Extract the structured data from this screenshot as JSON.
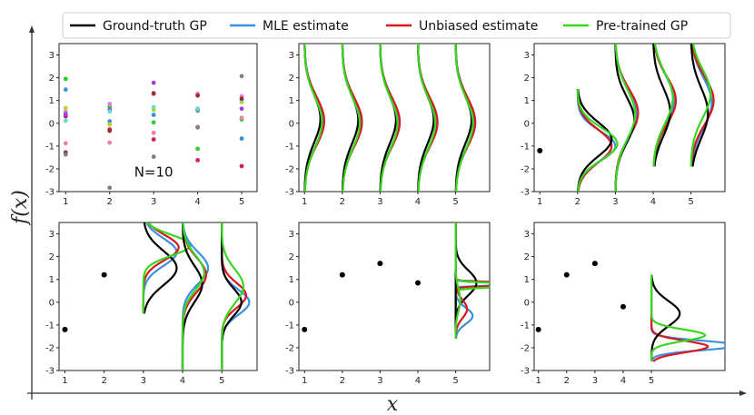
{
  "chart_data": {
    "type": "line",
    "title": "",
    "xlabel": "x",
    "ylabel": "f(x)",
    "colors": {
      "ground_truth": "#000000",
      "mle": "#3a8fe0",
      "unbiased": "#d6191f",
      "pretrained": "#39d620"
    },
    "legend": [
      {
        "key": "ground_truth",
        "label": "Ground-truth GP"
      },
      {
        "key": "mle",
        "label": "MLE estimate"
      },
      {
        "key": "unbiased",
        "label": "Unbiased estimate"
      },
      {
        "key": "pretrained",
        "label": "Pre-trained GP"
      }
    ],
    "panels": [
      {
        "id": "a",
        "xticks": [
          1,
          2,
          3,
          4,
          5
        ],
        "yticks": [
          -3,
          -2,
          -1,
          0,
          1,
          2,
          3
        ],
        "xlim": [
          0.85,
          5.35
        ],
        "ylim": [
          -3,
          3.5
        ],
        "annotation": "N=10",
        "samples_colors": [
          "#2bd02b",
          "#3a8fe0",
          "#e080e8",
          "#c0d020",
          "#d02060",
          "#a040e0",
          "#f080a0",
          "#60e0d0",
          "#9e2d2d",
          "#808080"
        ],
        "samples": [
          [
            1.95,
            1.48,
            0.52,
            0.67,
            0.31,
            0.41,
            -0.88,
            0.12,
            -1.28,
            -1.37
          ],
          [
            0.72,
            0.09,
            0.85,
            -0.05,
            -0.27,
            0.59,
            -0.85,
            0.52,
            -0.33,
            -2.83
          ],
          [
            0.04,
            0.37,
            1.28,
            0.59,
            -0.71,
            1.78,
            -0.42,
            0.71,
            1.32,
            -1.47
          ],
          [
            -1.12,
            0.55,
            1.3,
            0.59,
            -1.62,
            0.62,
            -0.16,
            0.65,
            1.22,
            -0.18
          ],
          [
            0.17,
            -0.67,
            1.19,
            0.93,
            -1.88,
            0.64,
            0.24,
            1.02,
            1.08,
            2.07
          ]
        ]
      },
      {
        "id": "b",
        "xticks": [
          1,
          2,
          3,
          4,
          5
        ],
        "yticks": [
          -3,
          -2,
          -1,
          0,
          1,
          2,
          3
        ],
        "xlim": [
          0.85,
          5.9
        ],
        "ylim": [
          -3,
          3.5
        ],
        "observed": [],
        "densities": [
          {
            "x": 1,
            "ylo": -3,
            "yhi": 3.5,
            "gt": [
              0.2,
              1.05,
              0.42
            ],
            "mle": [
              0.1,
              1.1,
              0.48
            ],
            "unb": [
              0.1,
              1.08,
              0.52
            ],
            "pre": [
              0.05,
              1.1,
              0.46
            ]
          },
          {
            "x": 2,
            "ylo": -3,
            "yhi": 3.5,
            "gt": [
              0.15,
              1.05,
              0.42
            ],
            "mle": [
              0.05,
              1.1,
              0.48
            ],
            "unb": [
              0.05,
              1.08,
              0.52
            ],
            "pre": [
              0.0,
              1.1,
              0.46
            ]
          },
          {
            "x": 3,
            "ylo": -3,
            "yhi": 3.5,
            "gt": [
              0.15,
              1.05,
              0.42
            ],
            "mle": [
              0.05,
              1.1,
              0.48
            ],
            "unb": [
              0.05,
              1.08,
              0.52
            ],
            "pre": [
              0.0,
              1.1,
              0.46
            ]
          },
          {
            "x": 4,
            "ylo": -3,
            "yhi": 3.5,
            "gt": [
              0.15,
              1.05,
              0.42
            ],
            "mle": [
              0.05,
              1.1,
              0.48
            ],
            "unb": [
              0.05,
              1.08,
              0.52
            ],
            "pre": [
              0.0,
              1.1,
              0.46
            ]
          },
          {
            "x": 5,
            "ylo": -3,
            "yhi": 3.5,
            "gt": [
              0.15,
              1.05,
              0.42
            ],
            "mle": [
              0.05,
              1.1,
              0.48
            ],
            "unb": [
              0.05,
              1.08,
              0.52
            ],
            "pre": [
              0.0,
              1.1,
              0.46
            ]
          }
        ]
      },
      {
        "id": "c",
        "xticks": [
          1,
          2,
          3,
          4,
          5
        ],
        "yticks": [
          -3,
          -2,
          -1,
          0,
          1,
          2,
          3
        ],
        "xlim": [
          0.85,
          5.9
        ],
        "ylim": [
          -3,
          3.5
        ],
        "observed": [
          [
            1,
            -1.2
          ]
        ],
        "densities": [
          {
            "x": 2,
            "ylo": -3,
            "yhi": 1.5,
            "gt": [
              -0.7,
              0.75,
              0.9
            ],
            "mle": [
              -1.0,
              0.65,
              1.0
            ],
            "unb": [
              -1.0,
              0.72,
              0.9
            ],
            "pre": [
              -0.9,
              0.7,
              1.05
            ]
          },
          {
            "x": 3,
            "ylo": -3,
            "yhi": 3.5,
            "gt": [
              0.15,
              1.0,
              0.5
            ],
            "mle": [
              0.4,
              1.1,
              0.55
            ],
            "unb": [
              0.45,
              1.05,
              0.6
            ],
            "pre": [
              0.4,
              1.1,
              0.52
            ]
          },
          {
            "x": 4,
            "ylo": -1.9,
            "yhi": 3.5,
            "gt": [
              0.5,
              1.05,
              0.45
            ],
            "mle": [
              1.0,
              1.1,
              0.55
            ],
            "unb": [
              1.0,
              1.05,
              0.6
            ],
            "pre": [
              1.1,
              1.1,
              0.52
            ]
          },
          {
            "x": 5,
            "ylo": -1.9,
            "yhi": 3.5,
            "gt": [
              0.45,
              1.1,
              0.45
            ],
            "mle": [
              0.9,
              1.1,
              0.55
            ],
            "unb": [
              1.0,
              1.05,
              0.6
            ],
            "pre": [
              1.3,
              1.05,
              0.52
            ]
          }
        ]
      },
      {
        "id": "d",
        "xticks": [
          1,
          2,
          3,
          4,
          5
        ],
        "yticks": [
          -3,
          -2,
          -1,
          0,
          1,
          2,
          3
        ],
        "xlim": [
          0.85,
          5.9
        ],
        "ylim": [
          -3,
          3.5
        ],
        "observed": [
          [
            1,
            -1.2
          ],
          [
            2,
            1.2
          ]
        ],
        "densities": [
          {
            "x": 3,
            "ylo": -0.5,
            "yhi": 3.5,
            "gt": [
              1.5,
              0.75,
              0.85
            ],
            "mle": [
              2.2,
              0.6,
              0.85
            ],
            "unb": [
              2.4,
              0.55,
              0.9
            ],
            "pre": [
              2.5,
              0.45,
              1.2
            ]
          },
          {
            "x": 4,
            "ylo": -3,
            "yhi": 3.5,
            "gt": [
              0.8,
              0.8,
              0.5
            ],
            "mle": [
              1.5,
              0.7,
              0.65
            ],
            "unb": [
              1.2,
              0.75,
              0.6
            ],
            "pre": [
              1.3,
              0.75,
              0.55
            ]
          },
          {
            "x": 5,
            "ylo": -3,
            "yhi": 3.5,
            "gt": [
              0.0,
              0.6,
              0.5
            ],
            "mle": [
              0.0,
              0.55,
              0.7
            ],
            "unb": [
              0.3,
              0.55,
              0.62
            ],
            "pre": [
              0.7,
              0.75,
              0.55
            ]
          }
        ]
      },
      {
        "id": "e",
        "xticks": [
          1,
          2,
          3,
          4,
          5
        ],
        "yticks": [
          -3,
          -2,
          -1,
          0,
          1,
          2,
          3
        ],
        "xlim": [
          0.85,
          5.9
        ],
        "ylim": [
          -3,
          3.5
        ],
        "observed": [
          [
            1,
            -1.2
          ],
          [
            2,
            1.2
          ],
          [
            3,
            1.7
          ],
          [
            4,
            0.85
          ]
        ],
        "densities": [
          {
            "x": 5,
            "ylo": -1.6,
            "yhi": 3.5,
            "gt": [
              0.85,
              0.55,
              0.55
            ],
            "mle": [
              0.8,
              0.04,
              5.4
            ],
            "unb": [
              0.8,
              0.06,
              3.2
            ],
            "pre": [
              0.75,
              0.08,
              2.2
            ]
          },
          {
            "x": 5,
            "ylo": -1.6,
            "yhi": 1.4,
            "gt": [
              -0.2,
              0.45,
              0.0
            ],
            "mle": [
              -0.6,
              0.35,
              0.45
            ],
            "unb": [
              -0.3,
              0.4,
              0.3
            ],
            "pre": [
              0.1,
              0.5,
              0.12
            ]
          }
        ]
      },
      {
        "id": "f",
        "xticks": [
          1,
          2,
          3,
          4,
          5
        ],
        "yticks": [
          -3,
          -2,
          -1,
          0,
          1,
          2,
          3
        ],
        "xlim": [
          0.85,
          7.6
        ],
        "ylim": [
          -3,
          3.5
        ],
        "observed": [
          [
            1,
            -1.2
          ],
          [
            2,
            1.2
          ],
          [
            3,
            1.7
          ],
          [
            4,
            -0.2
          ]
        ],
        "densities": [
          {
            "x": 5,
            "ylo": -2.6,
            "yhi": 1.2,
            "gt": [
              -0.5,
              0.55,
              1.0
            ],
            "mle": [
              -1.9,
              0.2,
              3.1
            ],
            "unb": [
              -1.95,
              0.25,
              2.0
            ],
            "pre": [
              -1.45,
              0.25,
              1.9
            ]
          }
        ]
      }
    ]
  }
}
